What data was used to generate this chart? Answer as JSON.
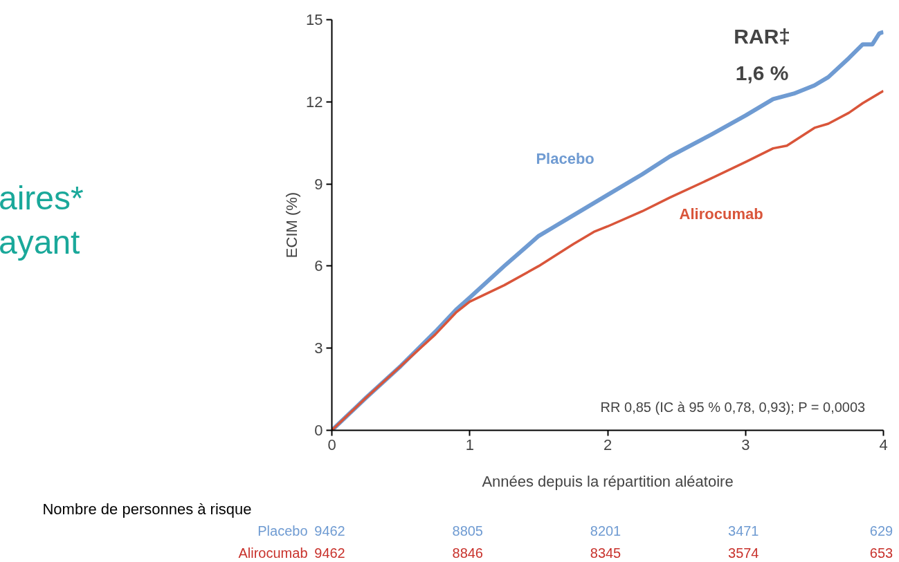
{
  "chart_data": {
    "type": "line",
    "xlabel": "Années depuis la répartition aléatoire",
    "ylabel": "ECIM (%)",
    "xlim": [
      0,
      4
    ],
    "xticks": [
      0,
      1,
      2,
      3,
      4
    ],
    "ylim": [
      0,
      15
    ],
    "yticks": [
      0,
      3,
      6,
      9,
      12,
      15
    ],
    "grid": false,
    "line_style": "solid",
    "series": [
      {
        "name": "Placebo",
        "color": "#6f9bd2",
        "x": [
          0,
          0.25,
          0.5,
          0.75,
          0.9,
          1,
          1.25,
          1.5,
          1.6,
          1.75,
          2,
          2.25,
          2.45,
          2.75,
          3,
          3.2,
          3.35,
          3.5,
          3.6,
          3.75,
          3.85,
          3.92,
          3.97,
          4
        ],
        "values": [
          0,
          1.2,
          2.35,
          3.6,
          4.4,
          4.85,
          6.0,
          7.1,
          7.4,
          7.85,
          8.6,
          9.35,
          10.0,
          10.8,
          11.5,
          12.1,
          12.3,
          12.6,
          12.9,
          13.6,
          14.1,
          14.1,
          14.5,
          14.55
        ]
      },
      {
        "name": "Alirocumab",
        "color": "#d9553a",
        "x": [
          0,
          0.25,
          0.5,
          0.75,
          0.9,
          1,
          1.25,
          1.5,
          1.75,
          1.9,
          2,
          2.25,
          2.45,
          2.75,
          3,
          3.2,
          3.3,
          3.5,
          3.6,
          3.75,
          3.85,
          4
        ],
        "values": [
          0,
          1.2,
          2.35,
          3.5,
          4.3,
          4.7,
          5.3,
          6.0,
          6.8,
          7.25,
          7.45,
          8.0,
          8.5,
          9.2,
          9.8,
          10.3,
          10.4,
          11.05,
          11.2,
          11.6,
          11.95,
          12.4
        ]
      }
    ],
    "annotations": [
      "RAR‡\n1,6 %",
      "RR 0,85 (IC à 95 % 0,78, 0,93); P = 0,0003",
      "aires*",
      "ayant",
      "Nombre de personnes à risque",
      "Placebo",
      "9462",
      "8805",
      "8201",
      "3471",
      "629",
      "Alirocumab",
      "9462",
      "8846",
      "8345",
      "3574",
      "653"
    ]
  }
}
